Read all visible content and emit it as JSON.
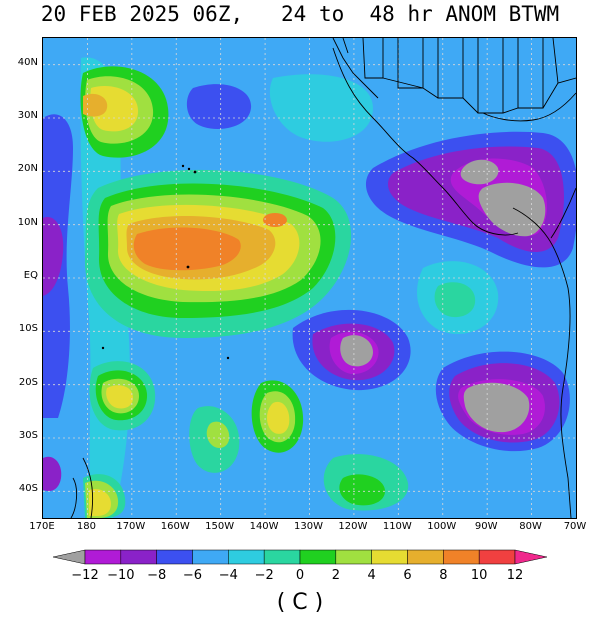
{
  "title": "20 FEB 2025 06Z,   24 to  48 hr ANOM BTWM",
  "units": "( C )",
  "lat_labels": [
    "40N",
    "30N",
    "20N",
    "10N",
    "EQ",
    "10S",
    "20S",
    "30S",
    "40S"
  ],
  "lat_values": [
    40,
    30,
    20,
    10,
    0,
    -10,
    -20,
    -30,
    -40
  ],
  "lon_labels": [
    "170E",
    "180",
    "170W",
    "160W",
    "150W",
    "140W",
    "130W",
    "120W",
    "110W",
    "100W",
    "90W",
    "80W",
    "70W"
  ],
  "lon_values": [
    170,
    180,
    190,
    200,
    210,
    220,
    230,
    240,
    250,
    260,
    270,
    280,
    290
  ],
  "map_extent": {
    "lon_min": 170,
    "lon_max": 290,
    "lat_min": -45,
    "lat_max": 45
  },
  "colorbar": {
    "ticks": [
      "-12",
      "-10",
      "-8",
      "-6",
      "-4",
      "-2",
      "0",
      "2",
      "4",
      "6",
      "8",
      "10",
      "12"
    ],
    "colors": [
      "#b01bd6",
      "#8a22c8",
      "#3c50f0",
      "#3fa9f5",
      "#2ecce0",
      "#2ad6a0",
      "#20d020",
      "#a0e040",
      "#e6dc32",
      "#e6af2d",
      "#f08228",
      "#f04040",
      "#f0288c"
    ],
    "under_color": "#a0a0a0",
    "over_color": "#f0288c"
  }
}
